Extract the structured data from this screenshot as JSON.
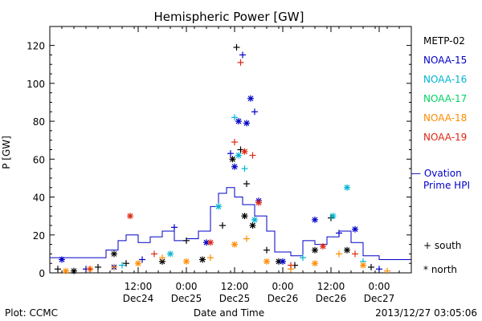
{
  "chart_data": {
    "type": "scatter",
    "title": "Hemispheric Power [GW]",
    "ylabel": "P [GW]",
    "xlabel": "Date and Time",
    "ylim": [
      0,
      130
    ],
    "xlim": [
      "2013-12-23T14:00",
      "2013-12-27T08:00"
    ],
    "yticks": [
      "0",
      "20",
      "40",
      "60",
      "80",
      "100",
      "120"
    ],
    "xticks": [
      {
        "time": "2013-12-24T12:00",
        "line1": "12:00",
        "line2": "Dec24"
      },
      {
        "time": "2013-12-25T00:00",
        "line1": "0:00",
        "line2": "Dec25"
      },
      {
        "time": "2013-12-25T12:00",
        "line1": "12:00",
        "line2": "Dec25"
      },
      {
        "time": "2013-12-26T00:00",
        "line1": "0:00",
        "line2": "Dec26"
      },
      {
        "time": "2013-12-26T12:00",
        "line1": "12:00",
        "line2": "Dec26"
      },
      {
        "time": "2013-12-27T00:00",
        "line1": "0:00",
        "line2": "Dec27"
      }
    ],
    "legend_placement": "right",
    "markers_legend": [
      {
        "symbol": "+",
        "label": "south"
      },
      {
        "symbol": "*",
        "label": "north"
      }
    ],
    "footer_left": "Plot: CCMC",
    "footer_right": "2013/12/27 03:05:06",
    "series": [
      {
        "name": "METP-02",
        "color": "#000000",
        "points": [
          {
            "x": "2013-12-23T16:00",
            "y": 2,
            "m": "+"
          },
          {
            "x": "2013-12-23T20:00",
            "y": 1,
            "m": "*"
          },
          {
            "x": "2013-12-24T02:00",
            "y": 3,
            "m": "+"
          },
          {
            "x": "2013-12-24T06:00",
            "y": 10,
            "m": "*"
          },
          {
            "x": "2013-12-24T09:00",
            "y": 5,
            "m": "+"
          },
          {
            "x": "2013-12-24T18:00",
            "y": 6,
            "m": "*"
          },
          {
            "x": "2013-12-25T00:00",
            "y": 17,
            "m": "+"
          },
          {
            "x": "2013-12-25T04:00",
            "y": 7,
            "m": "*"
          },
          {
            "x": "2013-12-25T09:00",
            "y": 25,
            "m": "+"
          },
          {
            "x": "2013-12-25T11:30",
            "y": 60,
            "m": "*"
          },
          {
            "x": "2013-12-25T12:30",
            "y": 119,
            "m": "+"
          },
          {
            "x": "2013-12-25T13:30",
            "y": 65,
            "m": "+"
          },
          {
            "x": "2013-12-25T14:30",
            "y": 30,
            "m": "*"
          },
          {
            "x": "2013-12-25T15:00",
            "y": 47,
            "m": "+"
          },
          {
            "x": "2013-12-25T16:30",
            "y": 25,
            "m": "*"
          },
          {
            "x": "2013-12-25T20:00",
            "y": 12,
            "m": "+"
          },
          {
            "x": "2013-12-25T23:00",
            "y": 6,
            "m": "*"
          },
          {
            "x": "2013-12-26T03:00",
            "y": 4,
            "m": "+"
          },
          {
            "x": "2013-12-26T08:00",
            "y": 12,
            "m": "*"
          },
          {
            "x": "2013-12-26T12:00",
            "y": 29,
            "m": "+"
          },
          {
            "x": "2013-12-26T16:00",
            "y": 12,
            "m": "*"
          },
          {
            "x": "2013-12-26T22:00",
            "y": 3,
            "m": "+"
          }
        ]
      },
      {
        "name": "NOAA-15",
        "color": "#0000c8",
        "points": [
          {
            "x": "2013-12-23T17:00",
            "y": 7,
            "m": "*"
          },
          {
            "x": "2013-12-23T23:00",
            "y": 2,
            "m": "+"
          },
          {
            "x": "2013-12-24T06:00",
            "y": 3,
            "m": "*"
          },
          {
            "x": "2013-12-24T13:00",
            "y": 7,
            "m": "+"
          },
          {
            "x": "2013-12-24T21:00",
            "y": 24,
            "m": "+"
          },
          {
            "x": "2013-12-25T05:00",
            "y": 16,
            "m": "*"
          },
          {
            "x": "2013-12-25T11:00",
            "y": 63,
            "m": "+"
          },
          {
            "x": "2013-12-25T12:00",
            "y": 56,
            "m": "*"
          },
          {
            "x": "2013-12-25T13:00",
            "y": 80,
            "m": "*"
          },
          {
            "x": "2013-12-25T14:00",
            "y": 115,
            "m": "+"
          },
          {
            "x": "2013-12-25T15:00",
            "y": 79,
            "m": "*"
          },
          {
            "x": "2013-12-25T16:00",
            "y": 92,
            "m": "*"
          },
          {
            "x": "2013-12-25T17:00",
            "y": 85,
            "m": "+"
          },
          {
            "x": "2013-12-25T18:00",
            "y": 38,
            "m": "*"
          },
          {
            "x": "2013-12-26T00:00",
            "y": 6,
            "m": "*"
          },
          {
            "x": "2013-12-26T08:00",
            "y": 28,
            "m": "*"
          },
          {
            "x": "2013-12-26T14:00",
            "y": 21,
            "m": "+"
          },
          {
            "x": "2013-12-26T18:00",
            "y": 23,
            "m": "*"
          },
          {
            "x": "2013-12-27T00:00",
            "y": 2,
            "m": "+"
          }
        ]
      },
      {
        "name": "NOAA-16",
        "color": "#00b4d2",
        "points": [
          {
            "x": "2013-12-24T08:00",
            "y": 4,
            "m": "+"
          },
          {
            "x": "2013-12-24T20:00",
            "y": 10,
            "m": "*"
          },
          {
            "x": "2013-12-25T08:00",
            "y": 35,
            "m": "*"
          },
          {
            "x": "2013-12-25T12:00",
            "y": 82,
            "m": "+"
          },
          {
            "x": "2013-12-25T13:00",
            "y": 62,
            "m": "*"
          },
          {
            "x": "2013-12-25T14:30",
            "y": 55,
            "m": "+"
          },
          {
            "x": "2013-12-25T17:00",
            "y": 28,
            "m": "*"
          },
          {
            "x": "2013-12-26T05:00",
            "y": 8,
            "m": "+"
          },
          {
            "x": "2013-12-26T12:30",
            "y": 30,
            "m": "*"
          },
          {
            "x": "2013-12-26T16:00",
            "y": 45,
            "m": "*"
          },
          {
            "x": "2013-12-26T20:00",
            "y": 6,
            "m": "+"
          }
        ]
      },
      {
        "name": "NOAA-17",
        "color": "#00d264",
        "points": []
      },
      {
        "name": "NOAA-18",
        "color": "#ff8c00",
        "points": [
          {
            "x": "2013-12-23T18:00",
            "y": 1,
            "m": "*"
          },
          {
            "x": "2013-12-24T00:00",
            "y": 2,
            "m": "*"
          },
          {
            "x": "2013-12-24T06:00",
            "y": 3,
            "m": "+"
          },
          {
            "x": "2013-12-24T12:00",
            "y": 5,
            "m": "*"
          },
          {
            "x": "2013-12-24T18:00",
            "y": 8,
            "m": "+"
          },
          {
            "x": "2013-12-25T00:00",
            "y": 6,
            "m": "*"
          },
          {
            "x": "2013-12-25T06:00",
            "y": 8,
            "m": "+"
          },
          {
            "x": "2013-12-25T12:00",
            "y": 15,
            "m": "*"
          },
          {
            "x": "2013-12-25T15:00",
            "y": 18,
            "m": "+"
          },
          {
            "x": "2013-12-25T20:00",
            "y": 6,
            "m": "*"
          },
          {
            "x": "2013-12-26T02:00",
            "y": 2,
            "m": "+"
          },
          {
            "x": "2013-12-26T08:00",
            "y": 5,
            "m": "*"
          },
          {
            "x": "2013-12-26T14:00",
            "y": 10,
            "m": "+"
          },
          {
            "x": "2013-12-26T20:00",
            "y": 4,
            "m": "*"
          },
          {
            "x": "2013-12-27T02:00",
            "y": 1,
            "m": "+"
          }
        ]
      },
      {
        "name": "NOAA-19",
        "color": "#dc2814",
        "points": [
          {
            "x": "2013-12-24T00:00",
            "y": 2,
            "m": "+"
          },
          {
            "x": "2013-12-24T10:00",
            "y": 30,
            "m": "*"
          },
          {
            "x": "2013-12-24T16:00",
            "y": 10,
            "m": "+"
          },
          {
            "x": "2013-12-25T06:00",
            "y": 16,
            "m": "*"
          },
          {
            "x": "2013-12-25T12:00",
            "y": 69,
            "m": "+"
          },
          {
            "x": "2013-12-25T13:30",
            "y": 111,
            "m": "+"
          },
          {
            "x": "2013-12-25T14:30",
            "y": 64,
            "m": "*"
          },
          {
            "x": "2013-12-25T16:30",
            "y": 62,
            "m": "+"
          },
          {
            "x": "2013-12-25T18:00",
            "y": 37,
            "m": "*"
          },
          {
            "x": "2013-12-26T02:00",
            "y": 4,
            "m": "+"
          },
          {
            "x": "2013-12-26T10:00",
            "y": 14,
            "m": "*"
          },
          {
            "x": "2013-12-26T18:00",
            "y": 10,
            "m": "+"
          }
        ]
      }
    ],
    "ovation_series": {
      "name_line1": "— Ovation",
      "name_line2": "Prime HPI",
      "color": "#0000c8",
      "points": [
        {
          "x": "2013-12-23T14:00",
          "y": 8
        },
        {
          "x": "2013-12-24T02:00",
          "y": 8
        },
        {
          "x": "2013-12-24T04:00",
          "y": 12
        },
        {
          "x": "2013-12-24T07:00",
          "y": 17
        },
        {
          "x": "2013-12-24T09:00",
          "y": 20
        },
        {
          "x": "2013-12-24T12:00",
          "y": 16
        },
        {
          "x": "2013-12-24T15:00",
          "y": 19
        },
        {
          "x": "2013-12-24T18:00",
          "y": 22
        },
        {
          "x": "2013-12-24T21:00",
          "y": 17
        },
        {
          "x": "2013-12-25T00:00",
          "y": 18
        },
        {
          "x": "2013-12-25T03:00",
          "y": 22
        },
        {
          "x": "2013-12-25T06:00",
          "y": 35
        },
        {
          "x": "2013-12-25T08:00",
          "y": 42
        },
        {
          "x": "2013-12-25T10:00",
          "y": 45
        },
        {
          "x": "2013-12-25T12:00",
          "y": 40
        },
        {
          "x": "2013-12-25T14:00",
          "y": 36
        },
        {
          "x": "2013-12-25T17:00",
          "y": 30
        },
        {
          "x": "2013-12-25T20:00",
          "y": 22
        },
        {
          "x": "2013-12-25T22:00",
          "y": 11
        },
        {
          "x": "2013-12-26T02:00",
          "y": 9
        },
        {
          "x": "2013-12-26T05:00",
          "y": 17
        },
        {
          "x": "2013-12-26T08:00",
          "y": 15
        },
        {
          "x": "2013-12-26T11:00",
          "y": 19
        },
        {
          "x": "2013-12-26T14:00",
          "y": 22
        },
        {
          "x": "2013-12-26T17:00",
          "y": 16
        },
        {
          "x": "2013-12-26T20:00",
          "y": 9
        },
        {
          "x": "2013-12-27T00:00",
          "y": 7
        },
        {
          "x": "2013-12-27T08:00",
          "y": 7
        }
      ]
    }
  }
}
